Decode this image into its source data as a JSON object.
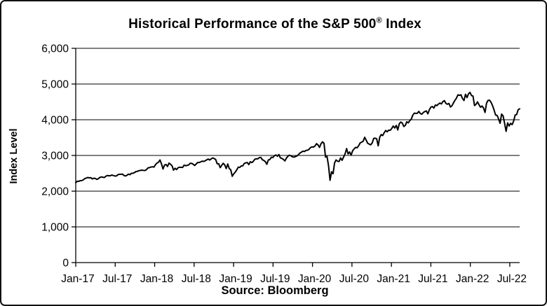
{
  "chart": {
    "title_main": "Historical Performance of the S&P 500",
    "title_registered": "®",
    "title_suffix": " Index",
    "ylabel": "Index Level",
    "source": "Source: Bloomberg"
  },
  "colors": {
    "line": "#000000",
    "grid": "#000000",
    "axis": "#000000",
    "background": "#ffffff",
    "border": "#111111",
    "text": "#000000"
  },
  "chart_data": {
    "type": "line",
    "title": "Historical Performance of the S&P 500® Index",
    "ylabel": "Index Level",
    "source_caption": "Source: Bloomberg",
    "legend": "none",
    "grid": "horizontal",
    "ylim": [
      0,
      6000
    ],
    "y_ticks": [
      0,
      1000,
      2000,
      3000,
      4000,
      5000,
      6000
    ],
    "y_tick_labels": [
      "0",
      "1,000",
      "2,000",
      "3,000",
      "4,000",
      "5,000",
      "6,000"
    ],
    "x_tick_labels": [
      "Jan-17",
      "Jul-17",
      "Jan-18",
      "Jul-18",
      "Jan-19",
      "Jul-19",
      "Jan-20",
      "Jul-20",
      "Jan-21",
      "Jul-21",
      "Jan-22",
      "Jul-22"
    ],
    "x_tick_month_step": 6,
    "xlim_months_from_jan17": [
      0,
      67.5
    ],
    "series": [
      {
        "name": "S&P 500 Index",
        "color": "#000000",
        "values": [
          2239,
          2277,
          2275,
          2295,
          2297,
          2316,
          2351,
          2367,
          2383,
          2373,
          2378,
          2344,
          2363,
          2356,
          2329,
          2349,
          2384,
          2399,
          2391,
          2382,
          2416,
          2439,
          2432,
          2432,
          2453,
          2438,
          2425,
          2425,
          2459,
          2473,
          2472,
          2477,
          2441,
          2426,
          2443,
          2477,
          2461,
          2500,
          2502,
          2519,
          2549,
          2553,
          2575,
          2581,
          2588,
          2582,
          2579,
          2602,
          2652,
          2660,
          2675,
          2683,
          2674,
          2743,
          2786,
          2810,
          2873,
          2762,
          2620,
          2732,
          2747,
          2691,
          2787,
          2752,
          2712,
          2588,
          2641,
          2604,
          2656,
          2670,
          2670,
          2663,
          2728,
          2713,
          2721,
          2735,
          2779,
          2780,
          2755,
          2718,
          2760,
          2801,
          2802,
          2819,
          2840,
          2833,
          2850,
          2875,
          2901,
          2872,
          2905,
          2930,
          2914,
          2886,
          2767,
          2768,
          2659,
          2723,
          2781,
          2736,
          2633,
          2760,
          2633,
          2600,
          2417,
          2486,
          2532,
          2596,
          2671,
          2665,
          2707,
          2708,
          2776,
          2793,
          2803,
          2743,
          2822,
          2801,
          2834,
          2893,
          2907,
          2905,
          2940,
          2945,
          2881,
          2860,
          2826,
          2752,
          2873,
          2887,
          2950,
          2942,
          2990,
          3014,
          2977,
          3026,
          2932,
          2918,
          2889,
          2847,
          2926,
          2979,
          3007,
          2992,
          2962,
          2952,
          2970,
          2986,
          3023,
          3067,
          3093,
          3120,
          3110,
          3141,
          3146,
          3169,
          3221,
          3240,
          3235,
          3265,
          3330,
          3295,
          3225,
          3328,
          3380,
          3338,
          2954,
          2972,
          2711,
          2305,
          2541,
          2489,
          2790,
          2875,
          2837,
          2831,
          2930,
          2864,
          2955,
          3044,
          3194,
          3041,
          3098,
          3009,
          3130,
          3185,
          3225,
          3216,
          3271,
          3351,
          3373,
          3397,
          3508,
          3427,
          3341,
          3319,
          3298,
          3348,
          3477,
          3484,
          3465,
          3270,
          3509,
          3585,
          3558,
          3638,
          3699,
          3663,
          3709,
          3703,
          3756,
          3825,
          3768,
          3841,
          3714,
          3887,
          3935,
          3907,
          3811,
          3842,
          3943,
          3913,
          3975,
          4020,
          4129,
          4185,
          4180,
          4181,
          4233,
          4174,
          4156,
          4204,
          4230,
          4247,
          4166,
          4281,
          4352,
          4370,
          4327,
          4412,
          4395,
          4437,
          4468,
          4442,
          4510,
          4535,
          4459,
          4433,
          4455,
          4357,
          4391,
          4471,
          4545,
          4605,
          4698,
          4683,
          4698,
          4595,
          4538,
          4712,
          4621,
          4726,
          4766,
          4677,
          4663,
          4398,
          4432,
          4501,
          4419,
          4349,
          4385,
          4329,
          4204,
          4463,
          4543,
          4546,
          4488,
          4393,
          4272,
          4132,
          4123,
          4024,
          3901,
          4158,
          4109,
          3901,
          3675,
          3912,
          3825,
          3899,
          3863,
          3962,
          4130,
          4145,
          4280,
          4305
        ]
      }
    ]
  }
}
